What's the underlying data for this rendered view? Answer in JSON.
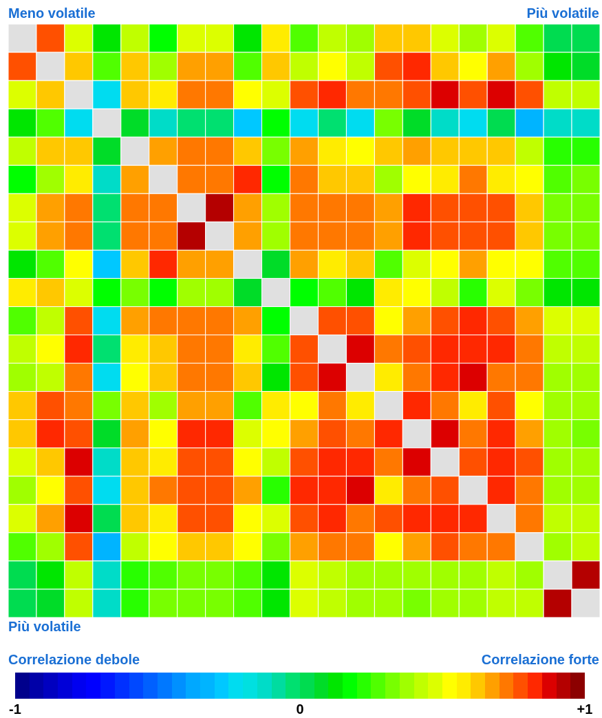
{
  "chart_data": {
    "type": "heatmap",
    "categories": [
      null,
      null,
      null,
      null,
      null,
      null,
      null,
      null,
      null,
      null,
      null,
      null,
      null,
      null,
      null,
      null,
      null,
      null,
      null,
      null,
      null
    ],
    "y_categories": [
      null,
      null,
      null,
      null,
      null,
      null,
      null,
      null,
      null,
      null,
      null,
      null,
      null,
      null,
      null,
      null,
      null,
      null,
      null,
      null,
      null
    ],
    "cells": [
      [
        null,
        0.78,
        0.48,
        0.13,
        0.43,
        0.18,
        0.48,
        0.48,
        0.13,
        0.58,
        0.28,
        0.43,
        0.38,
        0.63,
        0.63,
        0.48,
        0.38,
        0.48,
        0.28,
        0.03,
        0.03
      ],
      [
        0.78,
        null,
        0.63,
        0.28,
        0.63,
        0.38,
        0.68,
        0.68,
        0.28,
        0.63,
        0.43,
        0.53,
        0.43,
        0.78,
        0.83,
        0.63,
        0.53,
        0.68,
        0.38,
        0.13,
        0.08
      ],
      [
        0.48,
        0.63,
        null,
        -0.22,
        0.63,
        0.58,
        0.73,
        0.73,
        0.53,
        0.48,
        0.78,
        0.83,
        0.73,
        0.73,
        0.78,
        0.88,
        0.78,
        0.88,
        0.78,
        0.43,
        0.43
      ],
      [
        0.13,
        0.28,
        -0.22,
        null,
        0.08,
        -0.12,
        -0.02,
        -0.02,
        -0.27,
        0.18,
        -0.22,
        -0.02,
        -0.22,
        0.33,
        0.08,
        -0.12,
        -0.22,
        0.03,
        -0.32,
        -0.12,
        -0.12
      ],
      [
        0.43,
        0.63,
        0.63,
        0.08,
        null,
        0.68,
        0.73,
        0.73,
        0.63,
        0.33,
        0.68,
        0.58,
        0.53,
        0.63,
        0.68,
        0.63,
        0.63,
        0.63,
        0.43,
        0.23,
        0.23
      ],
      [
        0.18,
        0.38,
        0.58,
        -0.12,
        0.68,
        null,
        0.73,
        0.73,
        0.83,
        0.18,
        0.73,
        0.63,
        0.63,
        0.38,
        0.53,
        0.58,
        0.73,
        0.58,
        0.53,
        0.28,
        0.33
      ],
      [
        0.48,
        0.68,
        0.73,
        -0.02,
        0.73,
        0.73,
        null,
        0.93,
        0.68,
        0.38,
        0.73,
        0.73,
        0.73,
        0.68,
        0.83,
        0.78,
        0.78,
        0.78,
        0.63,
        0.33,
        0.33
      ],
      [
        0.48,
        0.68,
        0.73,
        -0.02,
        0.73,
        0.73,
        0.93,
        null,
        0.68,
        0.38,
        0.73,
        0.73,
        0.73,
        0.68,
        0.83,
        0.78,
        0.78,
        0.78,
        0.63,
        0.33,
        0.33
      ],
      [
        0.13,
        0.28,
        0.53,
        -0.27,
        0.63,
        0.83,
        0.68,
        0.68,
        null,
        0.08,
        0.68,
        0.58,
        0.63,
        0.28,
        0.48,
        0.53,
        0.68,
        0.53,
        0.53,
        0.28,
        0.28
      ],
      [
        0.58,
        0.63,
        0.48,
        0.18,
        0.33,
        0.18,
        0.38,
        0.38,
        0.08,
        null,
        0.18,
        0.28,
        0.13,
        0.58,
        0.53,
        0.43,
        0.23,
        0.48,
        0.33,
        0.13,
        0.13
      ],
      [
        0.28,
        0.43,
        0.78,
        -0.22,
        0.68,
        0.73,
        0.73,
        0.73,
        0.68,
        0.18,
        null,
        0.78,
        0.78,
        0.53,
        0.68,
        0.78,
        0.83,
        0.78,
        0.68,
        0.48,
        0.48
      ],
      [
        0.43,
        0.53,
        0.83,
        -0.02,
        0.58,
        0.63,
        0.73,
        0.73,
        0.58,
        0.28,
        0.78,
        null,
        0.88,
        0.73,
        0.78,
        0.83,
        0.83,
        0.83,
        0.73,
        0.43,
        0.43
      ],
      [
        0.38,
        0.43,
        0.73,
        -0.22,
        0.53,
        0.63,
        0.73,
        0.73,
        0.63,
        0.13,
        0.78,
        0.88,
        null,
        0.58,
        0.73,
        0.83,
        0.88,
        0.73,
        0.73,
        0.38,
        0.38
      ],
      [
        0.63,
        0.78,
        0.73,
        0.33,
        0.63,
        0.38,
        0.68,
        0.68,
        0.28,
        0.58,
        0.53,
        0.73,
        0.58,
        null,
        0.83,
        0.73,
        0.58,
        0.78,
        0.53,
        0.38,
        0.38
      ],
      [
        0.63,
        0.83,
        0.78,
        0.08,
        0.68,
        0.53,
        0.83,
        0.83,
        0.48,
        0.53,
        0.68,
        0.78,
        0.73,
        0.83,
        null,
        0.88,
        0.73,
        0.83,
        0.68,
        0.38,
        0.33
      ],
      [
        0.48,
        0.63,
        0.88,
        -0.12,
        0.63,
        0.58,
        0.78,
        0.78,
        0.53,
        0.43,
        0.78,
        0.83,
        0.83,
        0.73,
        0.88,
        null,
        0.78,
        0.83,
        0.78,
        0.38,
        0.38
      ],
      [
        0.38,
        0.53,
        0.78,
        -0.22,
        0.63,
        0.73,
        0.78,
        0.78,
        0.68,
        0.23,
        0.83,
        0.83,
        0.88,
        0.58,
        0.73,
        0.78,
        null,
        0.83,
        0.73,
        0.38,
        0.38
      ],
      [
        0.48,
        0.68,
        0.88,
        0.03,
        0.63,
        0.58,
        0.78,
        0.78,
        0.53,
        0.48,
        0.78,
        0.83,
        0.73,
        0.78,
        0.83,
        0.83,
        0.83,
        null,
        0.73,
        0.43,
        0.43
      ],
      [
        0.28,
        0.38,
        0.78,
        -0.32,
        0.43,
        0.53,
        0.63,
        0.63,
        0.53,
        0.33,
        0.68,
        0.73,
        0.73,
        0.53,
        0.68,
        0.78,
        0.73,
        0.73,
        null,
        0.38,
        0.43
      ],
      [
        0.03,
        0.13,
        0.43,
        -0.12,
        0.23,
        0.28,
        0.33,
        0.33,
        0.28,
        0.13,
        0.48,
        0.43,
        0.38,
        0.38,
        0.38,
        0.38,
        0.38,
        0.43,
        0.38,
        null,
        0.93
      ],
      [
        0.03,
        0.08,
        0.43,
        -0.12,
        0.23,
        0.33,
        0.33,
        0.33,
        0.28,
        0.13,
        0.48,
        0.43,
        0.38,
        0.38,
        0.33,
        0.38,
        0.38,
        0.43,
        0.43,
        0.93,
        null
      ]
    ],
    "clim": [
      -1,
      1
    ],
    "cticks": [
      {
        "value": -1,
        "label": "-1"
      },
      0,
      {
        "value": 1,
        "label": "+1"
      }
    ],
    "annotations": [
      "Meno volatile",
      "Più volatile",
      "Più volatile",
      "Correlazione debole",
      "Correlazione forte"
    ]
  }
}
